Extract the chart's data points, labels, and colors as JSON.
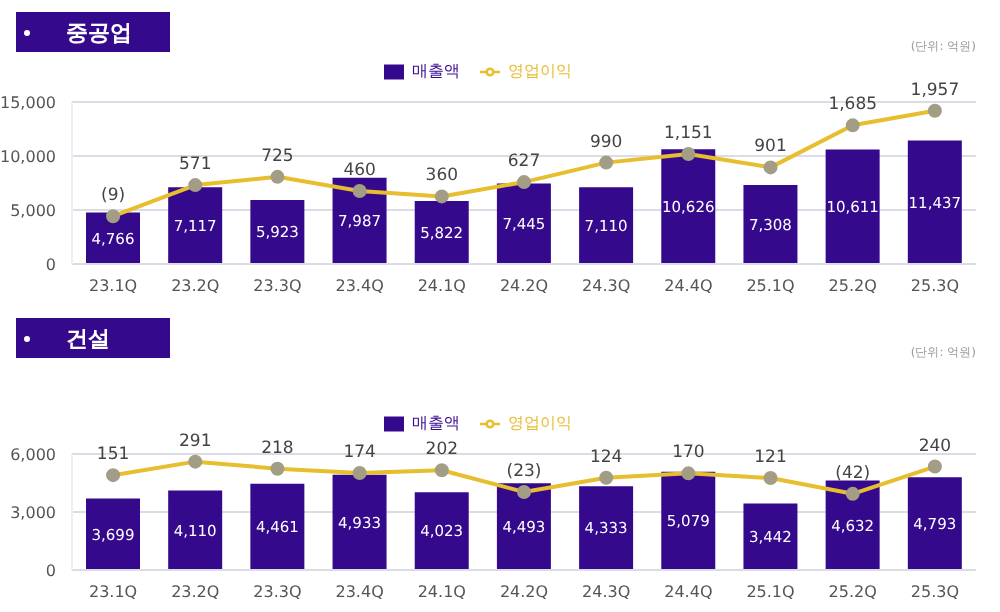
{
  "chart_data": [
    {
      "type": "bar",
      "title": "중공업",
      "annotations": [
        "(단위: 억원)"
      ],
      "categories": [
        "23.1Q",
        "23.2Q",
        "23.3Q",
        "23.4Q",
        "24.1Q",
        "24.2Q",
        "24.3Q",
        "24.4Q",
        "25.1Q",
        "25.2Q",
        "25.3Q"
      ],
      "series": [
        {
          "name": "매출액",
          "type": "bar",
          "color": "#35098c",
          "values": [
            4766,
            7117,
            5923,
            7987,
            5822,
            7445,
            7110,
            10626,
            7308,
            10611,
            11437
          ],
          "value_labels": [
            "4,766",
            "7,117",
            "5,923",
            "7,987",
            "5,822",
            "7,445",
            "7,110",
            "10,626",
            "7,308",
            "10,611",
            "11,437"
          ]
        },
        {
          "name": "영업이익",
          "type": "line",
          "axis": "y2",
          "color": "#e6be2e",
          "values": [
            -9,
            571,
            725,
            460,
            360,
            627,
            990,
            1151,
            901,
            1685,
            1957
          ],
          "value_labels": [
            "(9)",
            "571",
            "725",
            "460",
            "360",
            "627",
            "990",
            "1,151",
            "901",
            "1,685",
            "1,957"
          ]
        }
      ],
      "ylim": [
        0,
        15000
      ],
      "yticks": [
        {
          "value": 0,
          "label": "0"
        },
        {
          "value": 5000,
          "label": "5,000"
        },
        {
          "value": 10000,
          "label": "10,000"
        },
        {
          "value": 15000,
          "label": "15,000"
        }
      ],
      "y2lim": [
        -900,
        2120
      ],
      "grid": "y",
      "legend": "top",
      "marker": "circle"
    },
    {
      "type": "bar",
      "title": "건설",
      "annotations": [
        "(단위: 억원)"
      ],
      "categories": [
        "23.1Q",
        "23.2Q",
        "23.3Q",
        "23.4Q",
        "24.1Q",
        "24.2Q",
        "24.3Q",
        "24.4Q",
        "25.1Q",
        "25.2Q",
        "25.3Q"
      ],
      "series": [
        {
          "name": "매출액",
          "type": "bar",
          "color": "#35098c",
          "values": [
            3699,
            4110,
            4461,
            4933,
            4023,
            4493,
            4333,
            5079,
            3442,
            4632,
            4793
          ],
          "value_labels": [
            "3,699",
            "4,110",
            "4,461",
            "4,933",
            "4,023",
            "4,493",
            "4,333",
            "5,079",
            "3,442",
            "4,632",
            "4,793"
          ]
        },
        {
          "name": "영업이익",
          "type": "line",
          "axis": "y2",
          "color": "#e6be2e",
          "values": [
            151,
            291,
            218,
            174,
            202,
            -23,
            124,
            170,
            121,
            -42,
            240
          ],
          "value_labels": [
            "151",
            "291",
            "218",
            "174",
            "202",
            "(23)",
            "124",
            "170",
            "121",
            "(42)",
            "240"
          ]
        }
      ],
      "ylim": [
        0,
        6000
      ],
      "yticks": [
        {
          "value": 0,
          "label": "0"
        },
        {
          "value": 3000,
          "label": "3,000"
        },
        {
          "value": 6000,
          "label": "6,000"
        }
      ],
      "y2lim": [
        -830,
        370
      ],
      "grid": "y",
      "legend": "top",
      "marker": "circle"
    }
  ]
}
